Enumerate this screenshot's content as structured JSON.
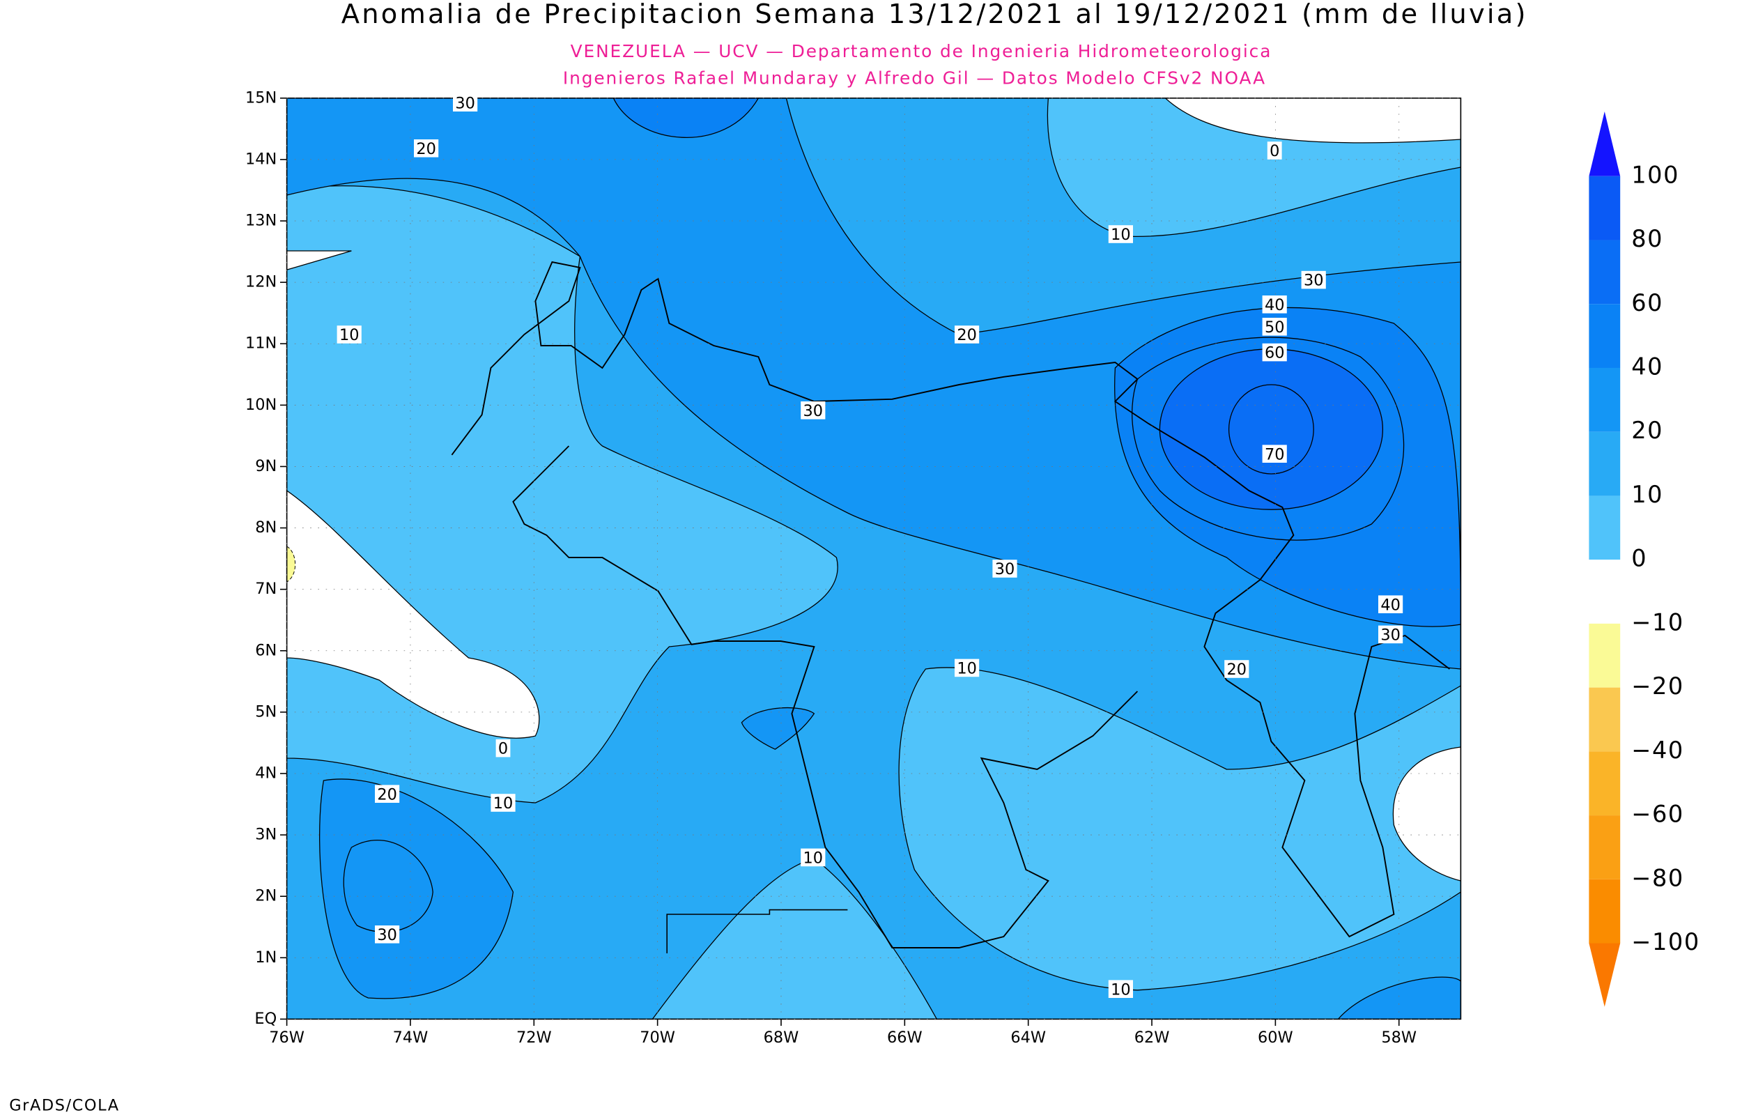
{
  "title": "Anomalia de Precipitacion Semana 13/12/2021 al 19/12/2021 (mm de lluvia)",
  "subtitle": [
    "VENEZUELA — UCV — Departamento de Ingenieria Hidrometeorologica",
    "Ingenieros Rafael Mundaray y Alfredo Gil — Datos Modelo CFSv2 NOAA"
  ],
  "map": {
    "xlim": [
      -76,
      -57
    ],
    "ylim": [
      0,
      15
    ],
    "xticks": [
      {
        "value": -76,
        "label": "76W"
      },
      {
        "value": -74,
        "label": "74W"
      },
      {
        "value": -72,
        "label": "72W"
      },
      {
        "value": -70,
        "label": "70W"
      },
      {
        "value": -68,
        "label": "68W"
      },
      {
        "value": -66,
        "label": "66W"
      },
      {
        "value": -64,
        "label": "64W"
      },
      {
        "value": -62,
        "label": "62W"
      },
      {
        "value": -60,
        "label": "60W"
      },
      {
        "value": -58,
        "label": "58W"
      }
    ],
    "yticks": [
      {
        "value": 0,
        "label": "EQ"
      },
      {
        "value": 1,
        "label": "1N"
      },
      {
        "value": 2,
        "label": "2N"
      },
      {
        "value": 3,
        "label": "3N"
      },
      {
        "value": 4,
        "label": "4N"
      },
      {
        "value": 5,
        "label": "5N"
      },
      {
        "value": 6,
        "label": "6N"
      },
      {
        "value": 7,
        "label": "7N"
      },
      {
        "value": 8,
        "label": "8N"
      },
      {
        "value": 9,
        "label": "9N"
      },
      {
        "value": 10,
        "label": "10N"
      },
      {
        "value": 11,
        "label": "11N"
      },
      {
        "value": 12,
        "label": "12N"
      },
      {
        "value": 13,
        "label": "13N"
      },
      {
        "value": 14,
        "label": "14N"
      },
      {
        "value": 15,
        "label": "15N"
      }
    ],
    "contour_labels": [
      30,
      20,
      0,
      10,
      30,
      40,
      50,
      60,
      20,
      10,
      30,
      70,
      30,
      40,
      30,
      20,
      10,
      0,
      20,
      10,
      10,
      30,
      10
    ]
  },
  "colorbar": {
    "ticks": [
      100,
      80,
      60,
      40,
      20,
      10,
      0,
      {
        "value": -10,
        "label": "−10"
      },
      {
        "value": -20,
        "label": "−20"
      },
      {
        "value": -40,
        "label": "−40"
      },
      {
        "value": -60,
        "label": "−60"
      },
      {
        "value": -80,
        "label": "−80"
      },
      {
        "value": -100,
        "label": "−100"
      }
    ],
    "colors": [
      "#1414ff",
      "#0a5af5",
      "#0a6ef5",
      "#0a82f5",
      "#1496f5",
      "#28aaf5",
      "#50c3fa",
      "#ffffff",
      "#fafa96",
      "#fac850",
      "#fab428",
      "#faa014",
      "#fa8c00",
      "#fa7800"
    ]
  },
  "footer": "GrADS/COLA"
}
